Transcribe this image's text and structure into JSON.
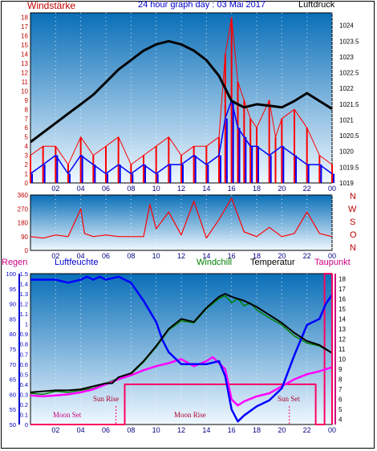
{
  "header": {
    "title": "24 hour graph day : 03 Mai 2017",
    "left_label": "Windstärke",
    "right_label": "Luftdruck"
  },
  "legend": {
    "rain": "Regen",
    "humidity": "Luftfeuchte",
    "windchill": "Windchill",
    "temperature": "Temperatur",
    "dewpoint": "Taupunkt"
  },
  "compass": [
    "N",
    "W",
    "S",
    "O",
    "N"
  ],
  "colors": {
    "wind_speed": "#ff0000",
    "wind_avg": "#0000ff",
    "pressure": "#000000",
    "wind_dir": "#ff0000",
    "humidity": "#0000ff",
    "temperature": "#000000",
    "windchill": "#008000",
    "dewpoint": "#ff00ff",
    "sun": "#ff0060",
    "left_axis": "#c00000",
    "rain_axis": "#0000cc",
    "right_axis": "#cc0080",
    "plot_top": "#0a6fb8",
    "plot_bottom": "#f0f8ff"
  },
  "chart_data": [
    {
      "type": "line",
      "panel": "wind_pressure",
      "x_ticks": [
        "02",
        "04",
        "06",
        "08",
        "10",
        "12",
        "14",
        "16",
        "18",
        "20",
        "22",
        "00"
      ],
      "left_axis": {
        "ticks": [
          0,
          1,
          2,
          3,
          4,
          5,
          6,
          7,
          8,
          9,
          10,
          11,
          12,
          13,
          14,
          15,
          16,
          17,
          18
        ],
        "ylim": [
          0,
          18.5
        ]
      },
      "right_axis": {
        "ticks": [
          "1019",
          "1019.5",
          "1020",
          "1020.5",
          "1021",
          "1021.5",
          "1022",
          "1022.5",
          "1023",
          "1023.5",
          "1024"
        ],
        "ylim": [
          1019,
          1024.4
        ]
      },
      "series": [
        {
          "name": "Luftdruck",
          "axis": "right",
          "x": [
            0,
            1,
            2,
            3,
            4,
            5,
            6,
            7,
            8,
            9,
            10,
            11,
            12,
            13,
            14,
            15,
            16,
            17,
            18,
            19,
            20,
            21,
            22,
            23,
            24
          ],
          "y": [
            1020.3,
            1020.6,
            1020.9,
            1021.2,
            1021.5,
            1021.8,
            1022.2,
            1022.6,
            1022.9,
            1023.2,
            1023.4,
            1023.5,
            1023.4,
            1023.2,
            1022.9,
            1022.4,
            1021.6,
            1021.4,
            1021.5,
            1021.45,
            1021.4,
            1021.6,
            1021.85,
            1021.6,
            1021.35
          ]
        },
        {
          "name": "Windstärke",
          "axis": "left",
          "x": [
            0,
            1,
            2,
            3,
            4,
            5,
            6,
            7,
            8,
            9,
            10,
            11,
            12,
            13,
            14,
            15,
            15.5,
            16,
            16.5,
            17,
            17.5,
            18,
            19,
            19.5,
            20,
            21,
            22,
            23,
            24
          ],
          "y": [
            3,
            4,
            4,
            2,
            5,
            3,
            4,
            5,
            2,
            3,
            4,
            5,
            3,
            4,
            4,
            5,
            14,
            18,
            11,
            9,
            7,
            6,
            9,
            5,
            7,
            8,
            6,
            3,
            2
          ]
        },
        {
          "name": "Wind Durchschnitt",
          "axis": "left",
          "x": [
            0,
            1,
            2,
            3,
            4,
            5,
            6,
            7,
            8,
            9,
            10,
            11,
            12,
            13,
            14,
            15,
            15.5,
            16,
            16.5,
            17,
            17.5,
            18,
            19,
            20,
            21,
            22,
            23,
            24
          ],
          "y": [
            1,
            2,
            3,
            1,
            3,
            2,
            1,
            2,
            1,
            2,
            1,
            2,
            2,
            3,
            2,
            3,
            7,
            9,
            6,
            5,
            4,
            4,
            3,
            4,
            3,
            2,
            2,
            1
          ]
        }
      ]
    },
    {
      "type": "line",
      "panel": "wind_direction",
      "x_ticks": [
        "02",
        "04",
        "06",
        "08",
        "10",
        "12",
        "14",
        "16",
        "18",
        "20",
        "22",
        "00"
      ],
      "y_ticks": [
        0,
        90,
        180,
        270,
        360
      ],
      "ylim": [
        0,
        360
      ],
      "series": [
        {
          "name": "Windrichtung",
          "x": [
            0,
            1,
            2,
            3,
            4,
            4.3,
            5,
            6,
            7,
            8,
            9,
            9.5,
            10,
            11,
            12,
            13,
            14,
            15,
            16,
            17,
            18,
            19,
            20,
            21,
            22,
            23,
            24
          ],
          "y": [
            90,
            80,
            100,
            90,
            270,
            110,
            90,
            100,
            90,
            90,
            90,
            300,
            140,
            250,
            100,
            320,
            80,
            200,
            340,
            120,
            90,
            150,
            90,
            110,
            250,
            110,
            90
          ]
        }
      ]
    },
    {
      "type": "line",
      "panel": "temperature_humidity",
      "x_ticks": [
        "02",
        "04",
        "06",
        "08",
        "10",
        "12",
        "14",
        "16",
        "18",
        "20",
        "22",
        "00"
      ],
      "rain_axis": {
        "ticks": [
          "0",
          "0.1",
          "0.2",
          "0.3",
          "0.4",
          "0.5",
          "0.6",
          "0.7",
          "0.8",
          "0.9",
          "1",
          "1.1",
          "1.2",
          "1.3",
          "1.4",
          "1.5"
        ],
        "ylim": [
          0,
          1.5
        ]
      },
      "humidity_axis": {
        "ticks": [
          50,
          55,
          60,
          65,
          70,
          75,
          80,
          85,
          90,
          95,
          100
        ],
        "ylim": [
          50,
          100
        ]
      },
      "temperature_axis": {
        "ticks": [
          4,
          5,
          6,
          7,
          8,
          9,
          10,
          11,
          12,
          13,
          14,
          15,
          16,
          17,
          18
        ],
        "ylim": [
          3.5,
          18.5
        ]
      },
      "annotations": [
        "Moon Set",
        "Sun Rise",
        "Moon Rise",
        "Sun Set"
      ],
      "series": [
        {
          "name": "Luftfeuchte",
          "axis": "humidity",
          "x": [
            0,
            2,
            3,
            4,
            4.5,
            5,
            5.5,
            6,
            7,
            8,
            9,
            10,
            10.5,
            11,
            12,
            13,
            14,
            15,
            15.5,
            16,
            16.5,
            17,
            18,
            19,
            20,
            21,
            22,
            23,
            23.5,
            24
          ],
          "y": [
            98,
            98,
            97,
            98,
            99,
            98,
            99,
            98,
            99,
            97,
            91,
            84,
            78,
            74,
            70,
            70,
            70,
            71,
            66,
            55,
            51,
            53,
            56,
            58,
            62,
            73,
            83,
            85,
            90,
            93
          ]
        },
        {
          "name": "Temperatur",
          "axis": "temperature",
          "x": [
            0,
            1,
            2,
            3,
            4,
            5,
            6,
            6.5,
            7,
            8,
            9,
            10,
            11,
            12,
            13,
            14,
            15,
            15.5,
            16,
            17,
            18,
            19,
            20,
            21,
            22,
            23,
            24
          ],
          "y": [
            6.7,
            6.8,
            6.9,
            6.9,
            7.0,
            7.3,
            7.6,
            7.6,
            8.2,
            8.6,
            9.8,
            11.3,
            13.0,
            14.0,
            13.7,
            15.1,
            16.2,
            16.5,
            16.2,
            15.8,
            15.2,
            14.4,
            13.6,
            12.6,
            11.8,
            11.4,
            10.6
          ]
        },
        {
          "name": "Windchill",
          "axis": "temperature",
          "x": [
            0,
            1,
            2,
            3,
            4,
            5,
            6,
            7,
            8,
            9,
            10,
            11,
            12,
            13,
            14,
            15,
            15.5,
            16,
            16.5,
            17,
            17.5,
            18,
            19,
            20,
            21,
            22,
            23,
            24
          ],
          "y": [
            6.6,
            6.5,
            6.8,
            6.7,
            6.9,
            7.1,
            7.6,
            8.1,
            8.5,
            9.7,
            11.2,
            12.9,
            13.8,
            13.6,
            15.0,
            16.0,
            16.3,
            15.6,
            16.0,
            15.3,
            15.6,
            14.9,
            14.1,
            13.4,
            12.3,
            11.6,
            11.3,
            10.6
          ]
        },
        {
          "name": "Taupunkt",
          "axis": "temperature",
          "x": [
            0,
            1,
            2,
            3,
            4,
            5,
            6,
            7,
            8,
            9,
            10,
            11,
            12,
            13,
            14,
            14.5,
            15,
            15.5,
            16,
            16.5,
            17,
            18,
            19,
            20,
            21,
            22,
            23,
            23.5,
            24
          ],
          "y": [
            6.4,
            6.3,
            6.4,
            6.5,
            6.7,
            7.0,
            7.5,
            8.0,
            8.4,
            8.9,
            9.3,
            9.6,
            10.0,
            9.3,
            9.8,
            10.2,
            9.6,
            9.0,
            6.0,
            5.4,
            5.8,
            6.3,
            6.6,
            7.3,
            8.0,
            8.5,
            8.8,
            9.0,
            9.2
          ]
        },
        {
          "name": "Sonne",
          "axis": "rain",
          "x": [
            0,
            7.5,
            7.5,
            22.7,
            22.7,
            23.4,
            23.4,
            24
          ],
          "y": [
            0,
            0,
            0.4,
            0.4,
            0,
            0,
            1.5,
            1.5
          ]
        }
      ]
    }
  ]
}
